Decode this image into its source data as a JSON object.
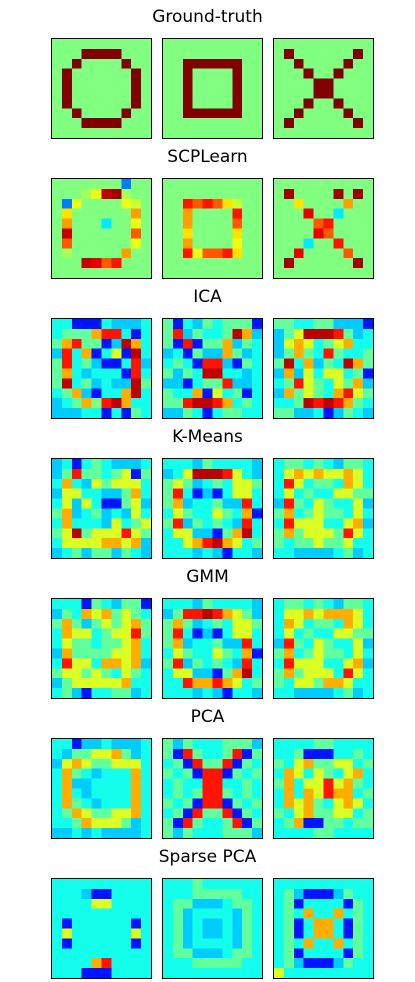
{
  "figure": {
    "colormap": "jet",
    "colormap_stops": [
      "#000080",
      "#0000ff",
      "#00ffff",
      "#80ff80",
      "#ffff00",
      "#ff0000",
      "#800000"
    ]
  },
  "chart_data": {
    "type": "heatmap",
    "grid_size": [
      10,
      10
    ],
    "value_range": [
      -1,
      1
    ],
    "rows": [
      {
        "title": "Ground-truth",
        "panels": [
          [
            "0000000000",
            "0001111000",
            "0010000100",
            "0100000010",
            "0100000010",
            "0100000010",
            "0100000010",
            "0010000100",
            "0001111000",
            "0000000000"
          ],
          [
            "0000000000",
            "0000000000",
            "0011111100",
            "0010000100",
            "0010000100",
            "0010000100",
            "0010000100",
            "0011111100",
            "0000000000",
            "0000000000"
          ],
          [
            "0000000000",
            "0100000010",
            "0010000100",
            "0001001000",
            "0000110000",
            "0000110000",
            "0001001000",
            "0010000100",
            "0100000010",
            "0000000000"
          ]
        ]
      },
      {
        "title": "SCPLearn",
        "panels": [
          [
            "0000000100",
            "00035bc300",
            "0150000540",
            "0600000070",
            "0700020050",
            "0b00000080",
            "0800000050",
            "0300000700",
            "000ba89000",
            "0000000000"
          ],
          [
            "0000000000",
            "0000000000",
            "0098986400",
            "0070000900",
            "0070000800",
            "0060000600",
            "0070000500",
            "0095889600",
            "0000000000",
            "0000000000"
          ],
          [
            "0000000000",
            "0c0000c0c0",
            "0060000700",
            "000a002000",
            "0000890000",
            "0000a80000",
            "0002009000",
            "00a0000800",
            "0c000000c0",
            "0000000000"
          ]
        ]
      },
      {
        "title": "ICA",
        "panels": [
          [
            "3311132223",
            "3444677313",
            "4674412863",
            "2736135183",
            "4734211372",
            "4632333173",
            "4834232284",
            "3462133683",
            "2346978633",
            "2223313143"
          ],
          [
            "4132434441",
            "4724334862",
            "4171446243",
            "2314226423",
            "3431772143",
            "4243883323",
            "2213447223",
            "4336153413",
            "4478876343",
            "2243134433"
          ],
          [
            "4433442221",
            "2458887423",
            "2565345633",
            "2464374334",
            "4836243864",
            "2625355341",
            "3475435462",
            "2645436754",
            "3348787643",
            "4422312432"
          ]
        ]
      },
      {
        "title": "K-Means",
        "panels": [
          [
            "2313432223",
            "2474434514",
            "3632545553",
            "2553322463",
            "3525311452",
            "4623423253",
            "3633325345",
            "4584555754",
            "3555566562",
            "2342442432"
          ],
          [
            "3332433332",
            "2358887532",
            "4542343554",
            "4731213553",
            "4623342273",
            "3543354361",
            "4724343273",
            "3552214683",
            "3356786534",
            "3332321332"
          ],
          [
            "3443432443",
            "3565655653",
            "3753443653",
            "3534335544",
            "2743543352",
            "4634544353",
            "3755533562",
            "4645554753",
            "4344544533",
            "3322223423"
          ]
        ]
      },
      {
        "title": "GMM",
        "panels": [
          [
            "3331432441",
            "2436564543",
            "4642454564",
            "3655345574",
            "3544344563",
            "2644445563",
            "3755366562",
            "4554543543",
            "2455555633",
            "3421334423"
          ],
          [
            "3332433332",
            "2477876542",
            "4642343554",
            "4731213553",
            "4623342273",
            "3543354361",
            "4724343273",
            "3552214683",
            "3376676534",
            "3332321332"
          ],
          [
            "3443432443",
            "3556566653",
            "3653443653",
            "3534335544",
            "2743543352",
            "4634544353",
            "3755533562",
            "4645553753",
            "4355466533",
            "3322223423"
          ]
        ]
      },
      {
        "title": "PCA",
        "panels": [
          [
            "3312232223",
            "3244556423",
            "2565445553",
            "3643233363",
            "3622333363",
            "3632333363",
            "3643233363",
            "3465445563",
            "3346555423",
            "2232322223"
          ],
          [
            "4243334442",
            "4174334714",
            "3417447143",
            "4341771434",
            "3433773343",
            "3434774343",
            "4341771434",
            "3417447143",
            "4174334714",
            "4243334442"
          ],
          [
            "3333443333",
            "3341113343",
            "4356445534",
            "3653543563",
            "4635575643",
            "3636576634",
            "3656435653",
            "4356445534",
            "3461144344",
            "3333443333"
          ]
        ]
      },
      {
        "title": "Sparse PCA",
        "panels": [
          [
            "3333333333",
            "3332113333",
            "3333553333",
            "3333333333",
            "3133333313",
            "3533333353",
            "3133333313",
            "3333333333",
            "3333673333",
            "3331113333"
          ],
          [
            "3334333333",
            "3334444433",
            "3442223443",
            "3423333243",
            "3423223243",
            "3423223243",
            "3423333243",
            "3442223443",
            "3334444433",
            "3333333333"
          ],
          [
            "3333333333",
            "3421112433",
            "3413333143",
            "3436336343",
            "3413663143",
            "3413663143",
            "3436336343",
            "3413333143",
            "3421112433",
            "5333333333"
          ]
        ]
      }
    ]
  }
}
